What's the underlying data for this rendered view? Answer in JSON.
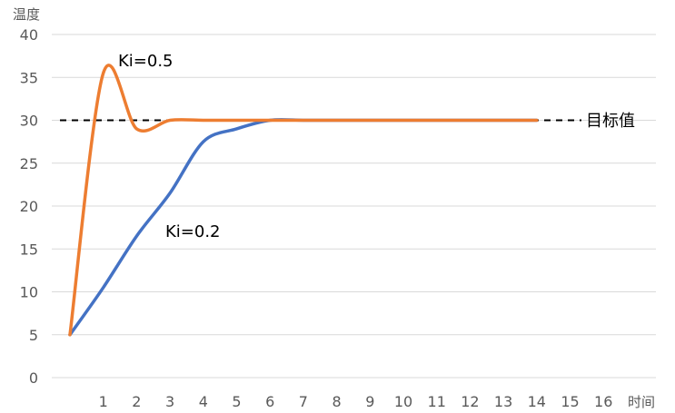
{
  "chart_data": {
    "type": "line",
    "ylabel": "温度",
    "xlabel": "时间",
    "ylim": [
      0,
      40
    ],
    "yticks": [
      "0",
      "5",
      "10",
      "15",
      "20",
      "25",
      "30",
      "35",
      "40"
    ],
    "xticks": [
      "1",
      "2",
      "3",
      "4",
      "5",
      "6",
      "7",
      "8",
      "9",
      "10",
      "11",
      "12",
      "13",
      "14",
      "15",
      "16"
    ],
    "xlim": [
      0.5,
      17
    ],
    "grid": "horizontal",
    "target": {
      "label": "目标值",
      "value": 30,
      "style": "dashed"
    },
    "series": [
      {
        "name": "Ki=0.5",
        "color": "#ED7D31",
        "x": [
          0,
          1,
          2,
          3,
          4,
          5,
          6,
          7,
          8,
          9,
          10,
          11,
          12,
          13,
          14
        ],
        "values": [
          5,
          35.5,
          29,
          30,
          30,
          30,
          30,
          30,
          30,
          30,
          30,
          30,
          30,
          30,
          30
        ]
      },
      {
        "name": "Ki=0.2",
        "color": "#4472C4",
        "x": [
          0,
          1,
          2,
          3,
          4,
          5,
          6,
          7,
          8,
          9,
          10,
          11,
          12,
          13,
          14
        ],
        "values": [
          5,
          10.5,
          16.5,
          21.5,
          27.5,
          29,
          30,
          30,
          30,
          30,
          30,
          30,
          30,
          30,
          30
        ]
      }
    ]
  }
}
